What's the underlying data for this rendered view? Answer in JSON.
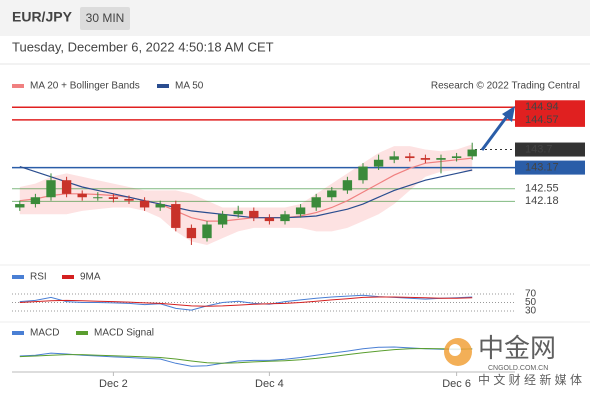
{
  "header": {
    "symbol": "EUR/JPY",
    "timeframe": "30 MIN",
    "datetime": "Tuesday, December 6, 2022 4:50:18 AM CET"
  },
  "watermark": {
    "brand": "中金网",
    "site": "CNGOLD.COM.CN",
    "slogan": "中 文 财 经 新 媒 体"
  },
  "chart_data": [
    {
      "type": "candlestick",
      "source": "Research © 2022 Trading Central",
      "categories": [
        null,
        null,
        null,
        null,
        null,
        null,
        "Dec 2",
        null,
        null,
        null,
        null,
        null,
        null,
        null,
        null,
        null,
        "Dec 4",
        null,
        null,
        null,
        null,
        null,
        null,
        null,
        null,
        null,
        null,
        null,
        "Dec 6",
        null
      ],
      "open": [
        142.0,
        142.1,
        142.3,
        142.8,
        142.4,
        142.3,
        142.3,
        142.25,
        142.2,
        142.0,
        142.1,
        141.4,
        141.1,
        141.5,
        141.8,
        141.9,
        141.7,
        141.6,
        141.8,
        142.0,
        142.3,
        142.5,
        142.8,
        143.2,
        143.4,
        143.5,
        143.45,
        143.4,
        143.45,
        143.5
      ],
      "high": [
        142.2,
        142.4,
        143.0,
        142.9,
        142.5,
        142.45,
        142.4,
        142.35,
        142.3,
        142.2,
        142.2,
        141.5,
        141.6,
        141.9,
        142.05,
        142.0,
        141.8,
        141.9,
        142.1,
        142.4,
        142.6,
        142.9,
        143.3,
        143.55,
        143.65,
        143.6,
        143.55,
        143.55,
        143.6,
        143.9
      ],
      "low": [
        141.9,
        142.0,
        142.2,
        142.3,
        142.2,
        142.2,
        142.15,
        142.1,
        141.9,
        141.9,
        141.3,
        140.9,
        141.0,
        141.4,
        141.7,
        141.6,
        141.5,
        141.5,
        141.7,
        141.9,
        142.2,
        142.4,
        142.7,
        143.1,
        143.3,
        143.35,
        143.3,
        143.0,
        143.35,
        143.4
      ],
      "close": [
        142.1,
        142.3,
        142.8,
        142.4,
        142.3,
        142.3,
        142.25,
        142.2,
        142.0,
        142.1,
        141.4,
        141.1,
        141.5,
        141.8,
        141.9,
        141.7,
        141.6,
        141.8,
        142.0,
        142.3,
        142.5,
        142.8,
        143.2,
        143.4,
        143.5,
        143.45,
        143.4,
        143.45,
        143.5,
        143.7
      ],
      "up_color": "#3a8a3a",
      "down_color": "#c8322a",
      "ylim": [
        140.4,
        145.3
      ],
      "series": [
        {
          "name": "MA 20 + Bollinger Bands",
          "color": "#f08080",
          "band_color": "#fde2e2",
          "values": [
            142.2,
            142.25,
            142.35,
            142.4,
            142.4,
            142.38,
            142.35,
            142.3,
            142.2,
            142.1,
            141.9,
            141.7,
            141.6,
            141.6,
            141.65,
            141.7,
            141.7,
            141.7,
            141.75,
            141.85,
            142.0,
            142.2,
            142.45,
            142.7,
            142.95,
            143.15,
            143.3,
            143.35,
            143.4,
            143.45
          ],
          "upper": [
            142.6,
            142.7,
            142.9,
            143.0,
            142.9,
            142.8,
            142.7,
            142.6,
            142.5,
            142.5,
            142.5,
            142.4,
            142.2,
            142.0,
            142.0,
            142.0,
            142.0,
            142.0,
            142.1,
            142.4,
            142.7,
            143.0,
            143.3,
            143.6,
            143.8,
            143.8,
            143.7,
            143.65,
            143.7,
            143.85
          ],
          "lower": [
            141.8,
            141.8,
            141.8,
            141.8,
            141.9,
            141.95,
            142.0,
            142.0,
            141.9,
            141.7,
            141.3,
            141.0,
            140.9,
            141.1,
            141.3,
            141.4,
            141.4,
            141.4,
            141.4,
            141.3,
            141.3,
            141.4,
            141.6,
            141.8,
            142.1,
            142.5,
            142.9,
            143.05,
            143.1,
            143.05
          ]
        },
        {
          "name": "MA 50",
          "color": "#2a4d8f",
          "values": [
            143.2,
            143.05,
            142.9,
            142.75,
            142.6,
            142.5,
            142.4,
            142.3,
            142.2,
            142.1,
            142.0,
            141.9,
            141.85,
            141.8,
            141.75,
            141.7,
            141.7,
            141.7,
            141.72,
            141.75,
            141.85,
            141.95,
            142.1,
            142.3,
            142.5,
            142.65,
            142.8,
            142.9,
            143.0,
            143.1
          ]
        }
      ],
      "levels": [
        {
          "value": 144.94,
          "color": "#e02020",
          "boxed": true
        },
        {
          "value": 144.57,
          "color": "#e02020",
          "boxed": true
        },
        {
          "value": 143.7,
          "color": "#333333",
          "boxed": true,
          "dotted": true
        },
        {
          "value": 143.17,
          "color": "#2a5da8",
          "boxed": true
        },
        {
          "value": 142.55,
          "color": "#2e8b2e",
          "boxed": false
        },
        {
          "value": 142.18,
          "color": "#2e8b2e",
          "boxed": false
        }
      ]
    },
    {
      "type": "line",
      "ylim": [
        20,
        80
      ],
      "yticks": [
        70,
        50,
        30
      ],
      "series": [
        {
          "name": "RSI",
          "color": "#4a7fd4",
          "values": [
            52,
            55,
            62,
            52,
            50,
            50,
            49,
            48,
            45,
            47,
            36,
            32,
            42,
            50,
            53,
            48,
            46,
            52,
            56,
            60,
            63,
            65,
            67,
            64,
            62,
            60,
            58,
            60,
            61,
            63
          ]
        },
        {
          "name": "9MA",
          "color": "#d42020",
          "values": [
            50,
            52,
            54,
            55,
            54,
            53,
            52,
            51,
            49,
            48,
            45,
            42,
            41,
            42,
            44,
            46,
            47,
            48,
            50,
            53,
            56,
            59,
            62,
            63,
            63,
            62,
            61,
            60,
            60,
            61
          ]
        }
      ]
    },
    {
      "type": "line",
      "ylim": [
        -0.6,
        0.6
      ],
      "series": [
        {
          "name": "MACD",
          "color": "#4a7fd4",
          "values": [
            0.05,
            0.08,
            0.15,
            0.12,
            0.08,
            0.05,
            0.02,
            0,
            -0.03,
            -0.05,
            -0.2,
            -0.3,
            -0.28,
            -0.2,
            -0.12,
            -0.1,
            -0.1,
            -0.06,
            0,
            0.08,
            0.15,
            0.22,
            0.3,
            0.35,
            0.36,
            0.33,
            0.3,
            0.28,
            0.27,
            0.3
          ]
        },
        {
          "name": "MACD Signal",
          "color": "#5a9e2f",
          "values": [
            0.03,
            0.05,
            0.08,
            0.1,
            0.1,
            0.08,
            0.06,
            0.04,
            0.02,
            0,
            -0.05,
            -0.12,
            -0.18,
            -0.2,
            -0.18,
            -0.15,
            -0.13,
            -0.11,
            -0.08,
            -0.03,
            0.03,
            0.1,
            0.16,
            0.22,
            0.27,
            0.3,
            0.31,
            0.3,
            0.29,
            0.29
          ]
        }
      ]
    }
  ]
}
